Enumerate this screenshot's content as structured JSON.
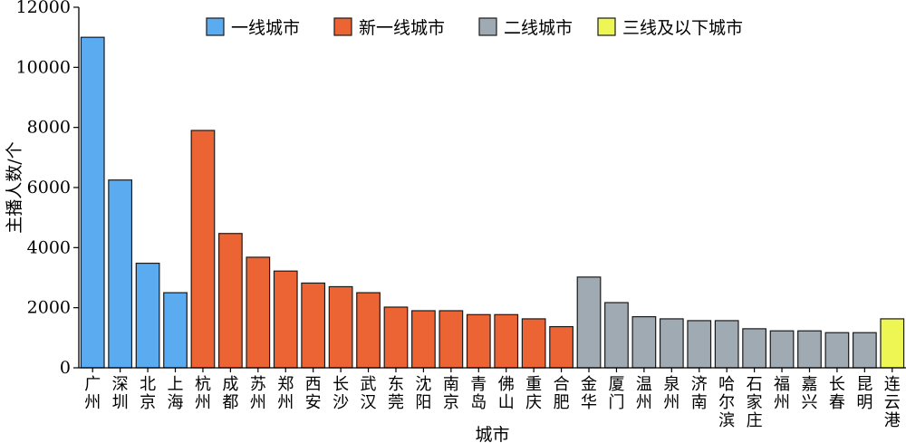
{
  "chart_data": {
    "type": "bar",
    "title": "",
    "xlabel": "城市",
    "ylabel": "主播人数/个",
    "ylim": [
      0,
      12000
    ],
    "yticks": [
      0,
      2000,
      4000,
      6000,
      8000,
      10000,
      12000
    ],
    "legend_position": "top",
    "grid": false,
    "tiers": [
      {
        "name": "一线城市",
        "color": "#5aabf0"
      },
      {
        "name": "新一线城市",
        "color": "#ec6434"
      },
      {
        "name": "二线城市",
        "color": "#9faab3"
      },
      {
        "name": "三线及以下城市",
        "color": "#eef653"
      }
    ],
    "categories": [
      "广州",
      "深圳",
      "北京",
      "上海",
      "杭州",
      "成都",
      "苏州",
      "郑州",
      "西安",
      "长沙",
      "武汉",
      "东莞",
      "沈阳",
      "南京",
      "青岛",
      "佛山",
      "重庆",
      "合肥",
      "金华",
      "厦门",
      "温州",
      "泉州",
      "济南",
      "哈尔滨",
      "石家庄",
      "福州",
      "嘉兴",
      "长春",
      "昆明",
      "连云港"
    ],
    "values": [
      11000,
      6250,
      3480,
      2500,
      7900,
      4470,
      3680,
      3220,
      2820,
      2700,
      2500,
      2020,
      1900,
      1900,
      1770,
      1770,
      1630,
      1370,
      3020,
      2170,
      1700,
      1630,
      1570,
      1570,
      1300,
      1230,
      1230,
      1170,
      1170,
      1630
    ],
    "tier_index": [
      0,
      0,
      0,
      0,
      1,
      1,
      1,
      1,
      1,
      1,
      1,
      1,
      1,
      1,
      1,
      1,
      1,
      1,
      2,
      2,
      2,
      2,
      2,
      2,
      2,
      2,
      2,
      2,
      2,
      3
    ]
  }
}
